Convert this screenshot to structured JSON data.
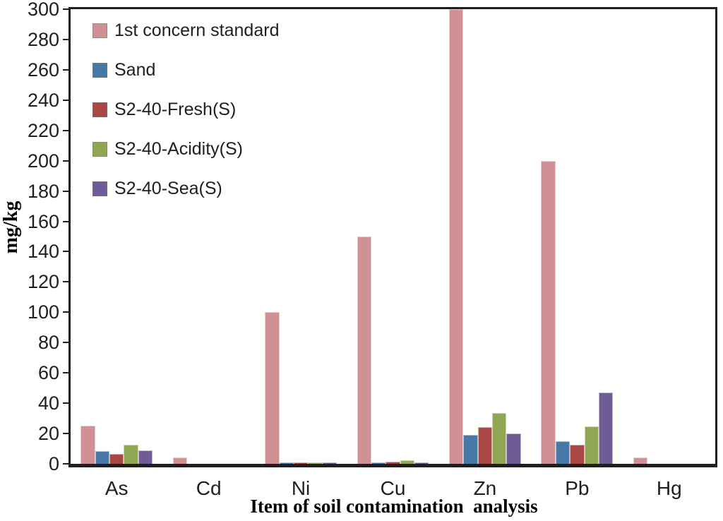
{
  "chart_data": {
    "type": "bar",
    "title": "",
    "xlabel": "Item of soil contamination  analysis",
    "ylabel": "mg/kg",
    "categories": [
      "As",
      "Cd",
      "Ni",
      "Cu",
      "Zn",
      "Pb",
      "Hg"
    ],
    "ylim": [
      0,
      300
    ],
    "ytick_step": 20,
    "grid": false,
    "legend_position": "top-left-inside",
    "axis_color": "#1f1f1f",
    "text_color": "#1f1f1f",
    "series": [
      {
        "name": "1st concern standard",
        "color": "#CF9193",
        "values": [
          25,
          4,
          100,
          150,
          300,
          200,
          4
        ]
      },
      {
        "name": "Sand",
        "color": "#4878A8",
        "values": [
          8.5,
          0,
          1,
          1,
          19,
          15,
          0
        ]
      },
      {
        "name": "S2-40-Fresh(S)",
        "color": "#A94744",
        "values": [
          6.5,
          0,
          1,
          1.5,
          24,
          12.5,
          0
        ]
      },
      {
        "name": "S2-40-Acidity(S)",
        "color": "#8FA653",
        "values": [
          12.5,
          0,
          1,
          2.5,
          33.5,
          24.5,
          0
        ]
      },
      {
        "name": "S2-40-Sea(S)",
        "color": "#6F5B95",
        "values": [
          9,
          0,
          1,
          1,
          20,
          47,
          0
        ]
      }
    ]
  }
}
